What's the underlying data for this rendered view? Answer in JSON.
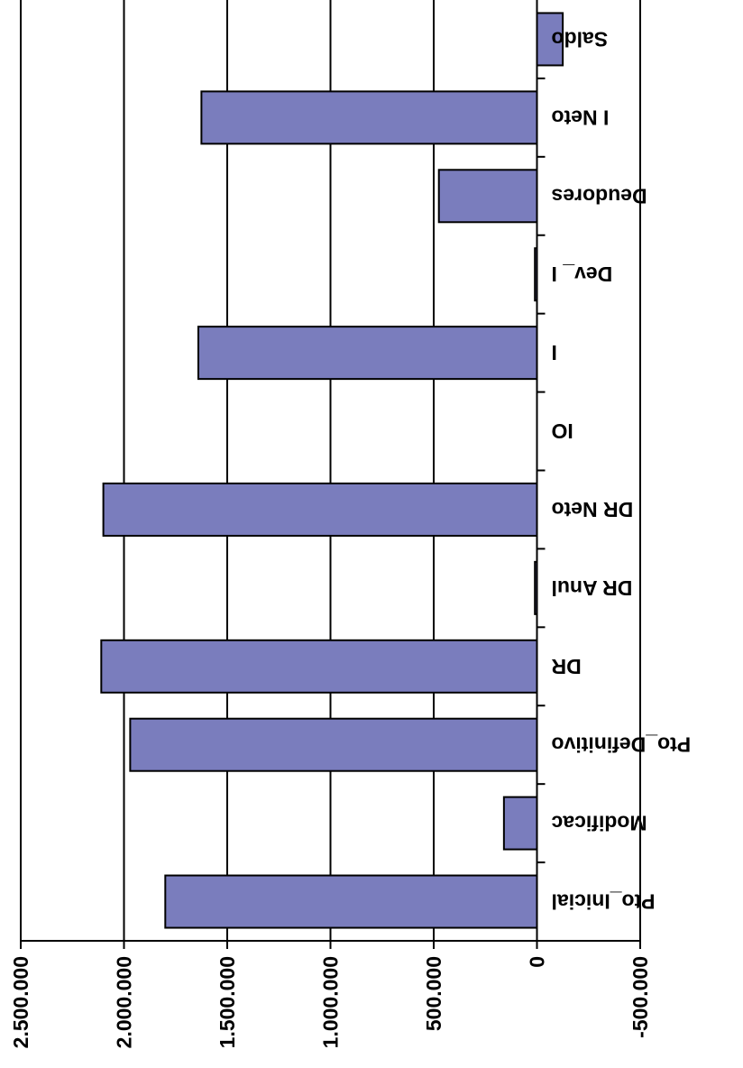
{
  "chart_data": {
    "type": "bar",
    "orientation": "horizontal",
    "categories": [
      "Pto_Inicial",
      "Modificac",
      "Pto_Definitivo",
      "DR",
      "DR Anul",
      "DR Neto",
      "IO",
      "I",
      "Dev_ I",
      "Deudores",
      "I Neto",
      "Saldo"
    ],
    "values": [
      1800000,
      160000,
      1970000,
      2110000,
      10000,
      2100000,
      0,
      1640000,
      10000,
      475000,
      1625000,
      -125000
    ],
    "value_axis": {
      "min": -500000,
      "max": 2500000,
      "ticks": [
        -500000,
        0,
        500000,
        1000000,
        1500000,
        2000000,
        2500000
      ],
      "tick_labels": [
        "-500.000",
        "0",
        "500.000",
        "1.000.000",
        "1.500.000",
        "2.000.000",
        "2.500.000"
      ]
    },
    "grid": "vertical major gridlines",
    "title": "",
    "xlabel": "",
    "ylabel": "",
    "legend": "none",
    "rotation": 180,
    "colors": {
      "bar_fill": "#7a7dbd",
      "bar_stroke": "#000000",
      "grid": "#000000",
      "background": "#ffffff"
    }
  }
}
